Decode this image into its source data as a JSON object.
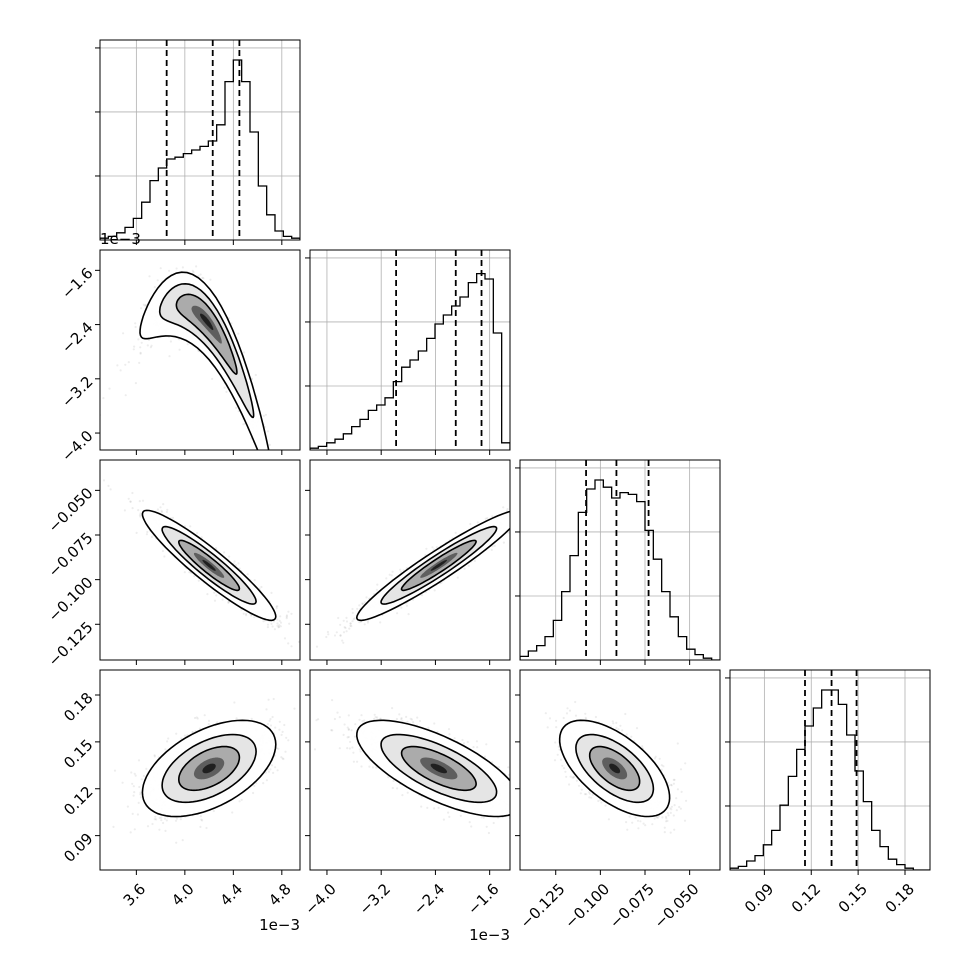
{
  "chart_data": {
    "type": "corner",
    "params": [
      {
        "id": "p0",
        "range": [
          3.3,
          4.95
        ],
        "ticks": [
          "3.6",
          "4.0",
          "4.4",
          "4.8"
        ],
        "tick_values": [
          3.6,
          4.0,
          4.4,
          4.8
        ],
        "offset_label": "1e−3",
        "quantiles": [
          3.85,
          4.23,
          4.45
        ]
      },
      {
        "id": "p1",
        "range": [
          -4.25,
          -1.3
        ],
        "ticks": [
          "−4.0",
          "−3.2",
          "−2.4",
          "−1.6"
        ],
        "tick_values": [
          -4.0,
          -3.2,
          -2.4,
          -1.6
        ],
        "offset_label": "1e−3",
        "quantiles": [
          -2.98,
          -2.1,
          -1.72
        ]
      },
      {
        "id": "p2",
        "range": [
          -0.145,
          -0.033
        ],
        "ticks": [
          "−0.125",
          "−0.100",
          "−0.075",
          "−0.050"
        ],
        "tick_values": [
          -0.125,
          -0.1,
          -0.075,
          -0.05
        ],
        "offset_label": "",
        "quantiles": [
          -0.108,
          -0.091,
          -0.073
        ]
      },
      {
        "id": "p3",
        "range": [
          0.068,
          0.196
        ],
        "ticks": [
          "0.09",
          "0.12",
          "0.15",
          "0.18"
        ],
        "tick_values": [
          0.09,
          0.12,
          0.15,
          0.18
        ],
        "offset_label": "",
        "quantiles": [
          0.116,
          0.133,
          0.149
        ]
      }
    ],
    "histograms": [
      [
        0.01,
        0.02,
        0.04,
        0.07,
        0.12,
        0.21,
        0.33,
        0.4,
        0.45,
        0.46,
        0.48,
        0.5,
        0.52,
        0.55,
        0.64,
        0.88,
        1.0,
        0.88,
        0.6,
        0.3,
        0.14,
        0.05,
        0.02,
        0.01
      ],
      [
        0.01,
        0.02,
        0.04,
        0.06,
        0.09,
        0.13,
        0.17,
        0.22,
        0.25,
        0.29,
        0.38,
        0.46,
        0.5,
        0.55,
        0.62,
        0.7,
        0.75,
        0.8,
        0.85,
        0.93,
        0.98,
        0.95,
        0.65,
        0.04
      ],
      [
        0.02,
        0.05,
        0.08,
        0.13,
        0.22,
        0.38,
        0.58,
        0.82,
        0.95,
        1.0,
        0.96,
        0.9,
        0.93,
        0.92,
        0.88,
        0.72,
        0.56,
        0.38,
        0.24,
        0.13,
        0.06,
        0.03,
        0.01,
        0.0
      ],
      [
        0.01,
        0.02,
        0.05,
        0.08,
        0.14,
        0.22,
        0.36,
        0.52,
        0.67,
        0.8,
        0.9,
        1.0,
        1.0,
        0.92,
        0.75,
        0.55,
        0.38,
        0.22,
        0.13,
        0.06,
        0.03,
        0.01,
        0.0,
        0.0
      ]
    ],
    "pairs": [
      {
        "row": 1,
        "col": 0,
        "mean": [
          4.18,
          -2.35
        ],
        "sd": [
          0.25,
          0.55
        ],
        "corr": -0.9,
        "curve": 2.6
      },
      {
        "row": 2,
        "col": 0,
        "mean": [
          4.2,
          -0.092
        ],
        "sd": [
          0.25,
          0.014
        ],
        "corr": -0.93,
        "curve": 0
      },
      {
        "row": 2,
        "col": 1,
        "mean": [
          -2.35,
          -0.092
        ],
        "sd": [
          0.55,
          0.014
        ],
        "corr": 0.95,
        "curve": 0
      },
      {
        "row": 3,
        "col": 0,
        "mean": [
          4.2,
          0.133
        ],
        "sd": [
          0.25,
          0.014
        ],
        "corr": 0.5,
        "curve": 0
      },
      {
        "row": 3,
        "col": 1,
        "mean": [
          -2.35,
          0.133
        ],
        "sd": [
          0.55,
          0.014
        ],
        "corr": -0.7,
        "curve": 0
      },
      {
        "row": 3,
        "col": 2,
        "mean": [
          -0.092,
          0.133
        ],
        "sd": [
          0.014,
          0.014
        ],
        "corr": -0.6,
        "curve": 0
      }
    ],
    "grid": true
  }
}
